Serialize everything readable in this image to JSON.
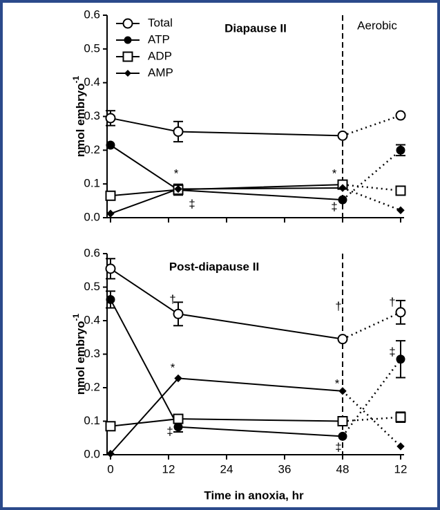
{
  "chart_data": [
    {
      "type": "line",
      "title": "Diapause II",
      "region_label": "Aerobic",
      "anoxia_end": 48,
      "ylabel": "nmol embryo",
      "ylabel_sup": "-1",
      "xlim": [
        0,
        60
      ],
      "xticks": [
        0,
        12,
        24,
        36,
        48,
        {
          "value": 60,
          "label": "12"
        }
      ],
      "ylim": [
        0,
        0.6
      ],
      "yticks": [
        {
          "value": 0,
          "label": "0.0"
        },
        0.1,
        0.2,
        0.3,
        0.4,
        0.5,
        0.6
      ],
      "legend": "upper left",
      "x": [
        0,
        14,
        48,
        60
      ],
      "series": [
        {
          "name": "Total",
          "color": "#000000",
          "marker": "circle-open",
          "values": [
            0.295,
            0.255,
            0.243,
            0.303
          ],
          "errors": [
            0.022,
            0.03,
            null,
            null
          ]
        },
        {
          "name": "ATP",
          "color": "#000000",
          "marker": "circle",
          "values": [
            0.215,
            0.082,
            0.053,
            0.2
          ],
          "errors": [
            null,
            null,
            null,
            0.016
          ]
        },
        {
          "name": "ADP",
          "color": "#000000",
          "marker": "square-open",
          "values": [
            0.065,
            0.083,
            0.098,
            0.08
          ],
          "errors": [
            null,
            0.016,
            null,
            0.01
          ]
        },
        {
          "name": "AMP",
          "color": "#000000",
          "marker": "diamond",
          "values": [
            0.012,
            0.085,
            0.088,
            0.022
          ],
          "errors": [
            null,
            null,
            null,
            null
          ]
        }
      ],
      "annotations": [
        "*",
        "‡",
        "*",
        "‡"
      ]
    },
    {
      "type": "line",
      "title": "Post-diapause II",
      "anoxia_end": 48,
      "ylabel": "nmol embryo",
      "ylabel_sup": "-1",
      "xlabel": "Time in anoxia, hr",
      "xlim": [
        0,
        60
      ],
      "xticks": [
        0,
        12,
        24,
        36,
        48,
        {
          "value": 60,
          "label": "12"
        }
      ],
      "ylim": [
        0,
        0.6
      ],
      "yticks": [
        {
          "value": 0,
          "label": "0.0"
        },
        0.1,
        0.2,
        0.3,
        0.4,
        0.5,
        0.6
      ],
      "x": [
        0,
        14,
        48,
        60
      ],
      "series": [
        {
          "color": "#000000",
          "marker": "circle-open",
          "values": [
            0.555,
            0.42,
            0.345,
            0.425
          ],
          "errors": [
            0.03,
            0.035,
            null,
            0.035
          ]
        },
        {
          "color": "#000000",
          "marker": "circle",
          "values": [
            0.463,
            0.083,
            0.055,
            0.285
          ],
          "errors": [
            0.025,
            0.015,
            null,
            0.055
          ]
        },
        {
          "color": "#000000",
          "marker": "square-open",
          "values": [
            0.085,
            0.107,
            0.1,
            0.112
          ],
          "errors": [
            null,
            0.01,
            null,
            0.015
          ]
        },
        {
          "color": "#000000",
          "marker": "diamond",
          "values": [
            0.003,
            0.228,
            0.19,
            0.025
          ],
          "errors": [
            null,
            null,
            null,
            null
          ]
        }
      ],
      "annotations": [
        "†",
        "*",
        "‡",
        "†",
        "*",
        "‡",
        "†",
        "‡"
      ]
    }
  ]
}
